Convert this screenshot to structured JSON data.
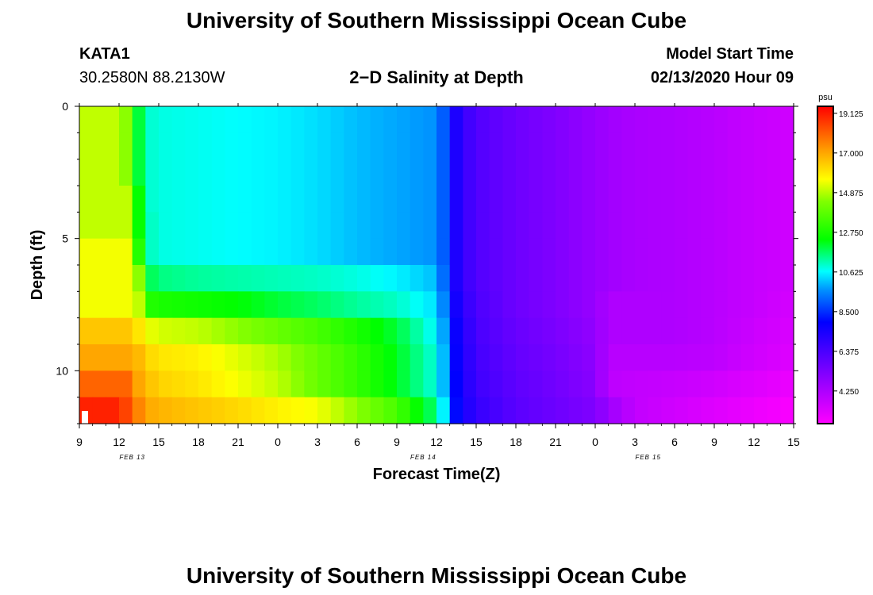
{
  "page": {
    "title_top": "University of Southern Mississippi Ocean Cube",
    "title_bottom": "University of Southern Mississippi Ocean Cube",
    "station_id": "KATA1",
    "station_coords": "30.2580N 88.2130W",
    "plot_title": "2−D Salinity at Depth",
    "model_start_label": "Model Start Time",
    "model_start_value": "02/13/2020 Hour 09"
  },
  "chart_data": {
    "type": "heatmap",
    "title": "2−D Salinity at Depth",
    "xlabel": "Forecast Time(Z)",
    "ylabel": "Depth (ft)",
    "x_tick_labels": [
      "9",
      "12",
      "15",
      "18",
      "21",
      "0",
      "3",
      "6",
      "9",
      "12",
      "15",
      "18",
      "21",
      "0",
      "3",
      "6",
      "9",
      "12",
      "15"
    ],
    "x_hours_from_start": [
      0,
      3,
      6,
      9,
      12,
      15,
      18,
      21,
      24,
      27,
      30,
      33,
      36,
      39,
      42,
      45,
      48,
      51,
      54
    ],
    "date_labels": [
      "FEB 13",
      "FEB 14",
      "FEB 15"
    ],
    "y_tick_labels": [
      "0",
      "5",
      "10"
    ],
    "y_ticks": [
      0,
      5,
      10
    ],
    "ylim": [
      0,
      12
    ],
    "colorbar": {
      "unit": "psu",
      "labels": [
        "19.125",
        "17.000",
        "14.875",
        "12.750",
        "10.625",
        "8.500",
        "6.375",
        "4.250"
      ],
      "range": [
        2.5,
        19.5
      ]
    },
    "depth_layers_ft": [
      0.5,
      1.5,
      2.5,
      3.5,
      4.5,
      5.5,
      6.5,
      7.5,
      8.5,
      9.5,
      10.5,
      11.5
    ],
    "time_knots_hours": [
      0,
      3,
      3.5,
      4,
      4.5,
      5,
      6,
      9,
      12,
      15,
      18,
      21,
      24,
      27,
      27.5,
      28,
      28.5,
      29,
      30,
      33,
      36,
      39,
      40,
      42,
      45,
      48,
      51,
      54
    ],
    "salinity_rows": [
      [
        15.0,
        15.0,
        14.5,
        13.0,
        12.0,
        11.0,
        10.8,
        10.7,
        10.6,
        10.5,
        10.3,
        10.0,
        9.8,
        9.6,
        9.0,
        8.2,
        7.3,
        6.8,
        6.2,
        5.6,
        5.2,
        4.7,
        4.5,
        4.3,
        4.2,
        4.0,
        3.7,
        3.5
      ],
      [
        15.0,
        15.0,
        14.5,
        13.0,
        12.0,
        11.0,
        10.8,
        10.7,
        10.6,
        10.5,
        10.3,
        10.0,
        9.8,
        9.6,
        9.0,
        8.2,
        7.3,
        6.8,
        6.2,
        5.6,
        5.2,
        4.7,
        4.5,
        4.3,
        4.2,
        4.0,
        3.7,
        3.5
      ],
      [
        15.0,
        15.0,
        14.5,
        13.0,
        12.0,
        11.0,
        10.8,
        10.7,
        10.6,
        10.5,
        10.3,
        10.0,
        9.8,
        9.6,
        9.0,
        8.2,
        7.3,
        6.8,
        6.2,
        5.6,
        5.2,
        4.7,
        4.5,
        4.3,
        4.2,
        4.0,
        3.7,
        3.5
      ],
      [
        15.0,
        15.0,
        15.0,
        13.5,
        12.5,
        11.0,
        10.8,
        10.7,
        10.6,
        10.5,
        10.3,
        10.0,
        9.8,
        9.6,
        9.0,
        8.2,
        7.3,
        6.8,
        6.2,
        5.6,
        5.2,
        4.7,
        4.5,
        4.3,
        4.2,
        4.0,
        3.7,
        3.5
      ],
      [
        15.0,
        15.0,
        15.0,
        14.0,
        12.5,
        11.2,
        10.8,
        10.7,
        10.6,
        10.5,
        10.3,
        10.0,
        9.8,
        9.6,
        9.0,
        8.2,
        7.3,
        6.8,
        6.2,
        5.6,
        5.2,
        4.7,
        4.5,
        4.3,
        4.2,
        4.0,
        3.7,
        3.5
      ],
      [
        15.5,
        15.5,
        15.5,
        14.5,
        13.0,
        11.2,
        10.8,
        10.7,
        10.6,
        10.5,
        10.3,
        10.0,
        9.8,
        9.6,
        9.0,
        8.2,
        7.3,
        6.8,
        6.2,
        5.6,
        5.2,
        4.7,
        4.5,
        4.3,
        4.2,
        4.0,
        3.7,
        3.5
      ],
      [
        15.5,
        15.5,
        15.5,
        15.0,
        14.5,
        12.0,
        11.5,
        11.3,
        11.2,
        11.1,
        11.0,
        10.8,
        10.5,
        10.0,
        9.2,
        8.2,
        7.3,
        6.8,
        6.2,
        5.6,
        5.2,
        4.7,
        4.5,
        4.3,
        4.2,
        4.0,
        3.7,
        3.5
      ],
      [
        15.5,
        15.5,
        15.5,
        15.5,
        15.0,
        13.0,
        12.8,
        12.6,
        12.4,
        12.0,
        11.7,
        11.3,
        11.0,
        10.3,
        9.5,
        8.3,
        7.5,
        7.0,
        6.3,
        5.6,
        5.2,
        4.7,
        4.2,
        4.2,
        4.2,
        4.0,
        3.7,
        3.4
      ],
      [
        16.5,
        16.5,
        16.5,
        16.5,
        16.0,
        15.5,
        15.2,
        15.0,
        14.5,
        14.0,
        13.5,
        12.8,
        12.0,
        10.5,
        9.8,
        8.4,
        7.7,
        7.2,
        6.4,
        5.7,
        5.3,
        4.8,
        4.2,
        4.2,
        4.2,
        4.0,
        3.6,
        3.3
      ],
      [
        17.0,
        17.0,
        17.0,
        17.0,
        16.7,
        16.3,
        16.0,
        15.8,
        15.3,
        14.8,
        14.0,
        13.2,
        12.2,
        10.8,
        10.0,
        8.5,
        7.8,
        7.3,
        6.5,
        5.8,
        5.4,
        4.9,
        4.0,
        4.0,
        4.0,
        3.9,
        3.5,
        3.2
      ],
      [
        18.0,
        18.0,
        18.0,
        17.5,
        17.0,
        16.7,
        16.3,
        16.0,
        15.5,
        15.0,
        14.0,
        13.2,
        12.2,
        10.8,
        10.0,
        8.6,
        7.9,
        7.4,
        6.6,
        5.9,
        5.5,
        5.0,
        3.9,
        3.8,
        3.7,
        3.5,
        3.2,
        2.9
      ],
      [
        19.0,
        19.0,
        18.5,
        18.0,
        17.5,
        17.0,
        16.8,
        16.5,
        16.2,
        15.8,
        15.5,
        14.5,
        13.5,
        11.5,
        10.5,
        9.0,
        8.0,
        7.5,
        6.8,
        6.0,
        5.6,
        5.2,
        4.6,
        3.8,
        3.5,
        3.2,
        2.9,
        2.6
      ]
    ]
  }
}
